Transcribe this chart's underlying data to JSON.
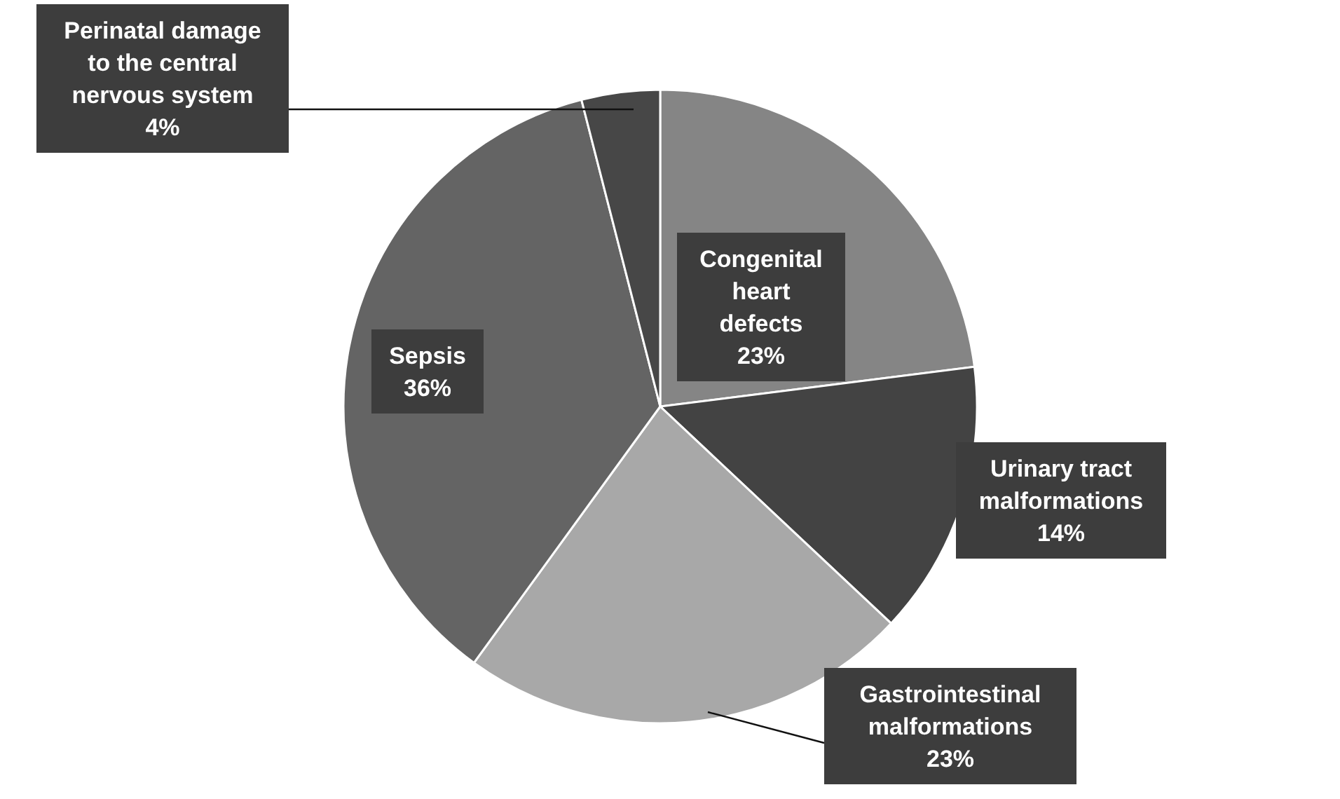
{
  "chart_data": {
    "type": "pie",
    "categories": [
      "Congenital heart defects",
      "Urinary tract malformations",
      "Gastrointestinal malformations",
      "Sepsis",
      "Perinatal damage to the central nervous system"
    ],
    "values": [
      23,
      14,
      23,
      36,
      4
    ],
    "value_labels": [
      "23%",
      "14%",
      "23%",
      "36%",
      "4%"
    ],
    "colors": [
      "#858585",
      "#434343",
      "#a8a8a8",
      "#646464",
      "#474747"
    ]
  }
}
